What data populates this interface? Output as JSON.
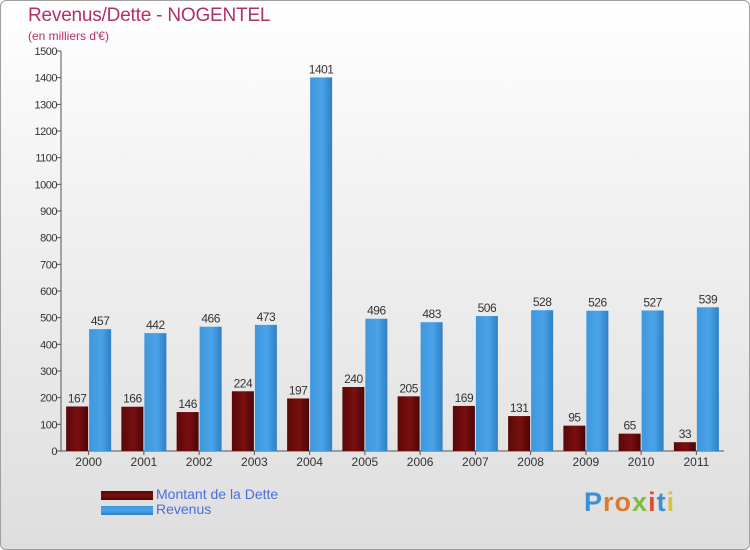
{
  "header": {
    "title": "Revenus/Dette - NOGENTEL",
    "subtitle": "(en milliers d'€)"
  },
  "brand": {
    "text": "Proxiti",
    "letter_colors": [
      "#3a8fd6",
      "#e07a2a",
      "#e07a2a",
      "#7bbf3a",
      "#d94f2b",
      "#3a8fd6",
      "#d8c23a"
    ]
  },
  "colors": {
    "dette": "#7a0f0f",
    "revenus": "#4aa3e8",
    "axis": "#555555"
  },
  "chart_data": {
    "type": "bar",
    "categories": [
      "2000",
      "2001",
      "2002",
      "2003",
      "2004",
      "2005",
      "2006",
      "2007",
      "2008",
      "2009",
      "2010",
      "2011"
    ],
    "series": [
      {
        "name": "Montant de la Dette",
        "values": [
          167,
          166,
          146,
          224,
          197,
          240,
          205,
          169,
          131,
          95,
          65,
          33
        ]
      },
      {
        "name": "Revenus",
        "values": [
          457,
          442,
          466,
          473,
          1401,
          496,
          483,
          506,
          528,
          526,
          527,
          539
        ]
      }
    ],
    "title": "Revenus/Dette - NOGENTEL",
    "subtitle": "(en milliers d'€)",
    "ylim": [
      0,
      1500
    ],
    "yticks": [
      0,
      100,
      200,
      300,
      400,
      500,
      600,
      700,
      800,
      900,
      1000,
      1100,
      1200,
      1300,
      1400,
      1500
    ],
    "grid": false,
    "legend": "bottom-left"
  }
}
